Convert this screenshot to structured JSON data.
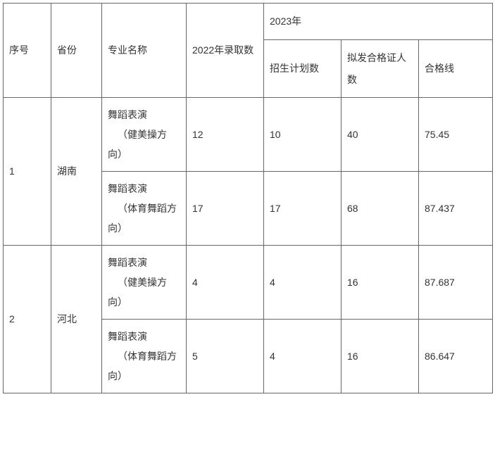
{
  "columns": {
    "seq": "序号",
    "province": "省份",
    "major": "专业名称",
    "admit2022": "2022年录取数",
    "year2023": "2023年",
    "plan": "招生计划数",
    "cert": "拟发合格证人数",
    "line": "合格线"
  },
  "rows": [
    {
      "seq": "1",
      "province": "湖南",
      "majors": [
        {
          "name_line1": "舞蹈表演",
          "name_line2": "（健美操方向）",
          "admit2022": "12",
          "plan": "10",
          "cert": "40",
          "line": "75.45"
        },
        {
          "name_line1": "舞蹈表演",
          "name_line2": "（体育舞蹈方向）",
          "admit2022": "17",
          "plan": "17",
          "cert": "68",
          "line": "87.437"
        }
      ]
    },
    {
      "seq": "2",
      "province": "河北",
      "majors": [
        {
          "name_line1": "舞蹈表演",
          "name_line2": "（健美操方向）",
          "admit2022": "4",
          "plan": "4",
          "cert": "16",
          "line": "87.687"
        },
        {
          "name_line1": "舞蹈表演",
          "name_line2": "（体育舞蹈方向）",
          "admit2022": "5",
          "plan": "4",
          "cert": "16",
          "line": "86.647"
        }
      ]
    }
  ],
  "styling": {
    "border_color": "#666666",
    "text_color": "#333333",
    "background_color": "#ffffff",
    "font_size": 14,
    "column_widths": {
      "seq": 68,
      "province": 72,
      "major": 120,
      "admit2022": 110,
      "plan": 110,
      "cert": 110,
      "line": 105
    }
  }
}
